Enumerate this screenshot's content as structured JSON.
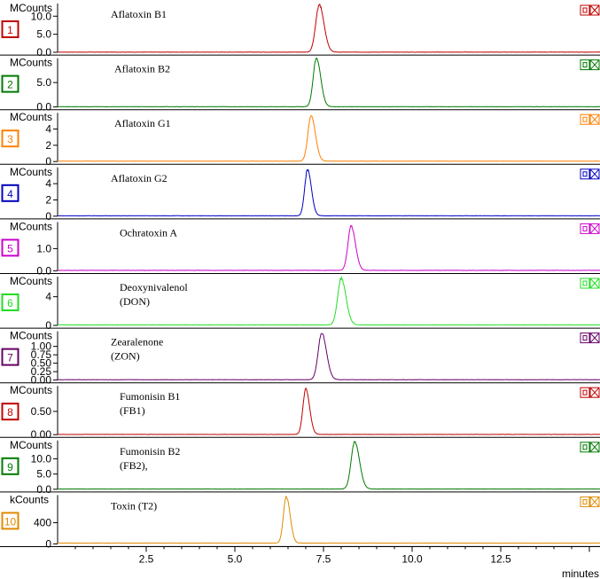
{
  "chart_data": {
    "type": "line",
    "x_axis": {
      "label": "minutes",
      "range": [
        0,
        15.3
      ],
      "ticks": [
        2.5,
        5.0,
        7.5,
        10.0,
        12.5
      ],
      "tick_labels": [
        "2.5",
        "5.0",
        "7.5",
        "10.0",
        "12.5"
      ]
    },
    "panels": [
      {
        "index": "1",
        "color": "#c00000",
        "unit": "MCounts",
        "compound": [
          "Aflatoxin B1"
        ],
        "y_ticks": [
          0.0,
          5.0,
          10.0
        ],
        "y_tick_labels": [
          "0.0",
          "5.0",
          "10.0"
        ],
        "y_range": [
          0,
          13.5
        ],
        "peak_time": 7.38,
        "peak_height": 13.0,
        "peak_width": 0.1,
        "baseline": 0.05
      },
      {
        "index": "2",
        "color": "#007a00",
        "unit": "MCounts",
        "compound": [
          "Aflatoxin B2"
        ],
        "y_ticks": [
          0.0,
          5.0
        ],
        "y_tick_labels": [
          "0.0",
          "5.0"
        ],
        "y_range": [
          0,
          10.0
        ],
        "peak_time": 7.3,
        "peak_height": 10.0,
        "peak_width": 0.09,
        "baseline": 0.05
      },
      {
        "index": "3",
        "color": "#ff8000",
        "unit": "MCounts",
        "compound": [
          "Aflatoxin G1"
        ],
        "y_ticks": [
          0,
          2,
          4
        ],
        "y_tick_labels": [
          "0",
          "2",
          "4"
        ],
        "y_range": [
          0,
          6.0
        ],
        "peak_time": 7.15,
        "peak_height": 5.6,
        "peak_width": 0.09,
        "baseline": 0.05
      },
      {
        "index": "4",
        "color": "#0000c0",
        "unit": "MCounts",
        "compound": [
          "Aflatoxin G2"
        ],
        "y_ticks": [
          0,
          2,
          4
        ],
        "y_tick_labels": [
          "0",
          "2",
          "4"
        ],
        "y_range": [
          0,
          6.0
        ],
        "peak_time": 7.05,
        "peak_height": 5.7,
        "peak_width": 0.08,
        "baseline": 0.05
      },
      {
        "index": "5",
        "color": "#cc00cc",
        "unit": "MCounts",
        "compound": [
          "Ochratoxin A"
        ],
        "y_ticks": [
          0.0,
          1.0
        ],
        "y_tick_labels": [
          "0.0",
          "1.0"
        ],
        "y_range": [
          0,
          2.2
        ],
        "peak_time": 8.28,
        "peak_height": 2.0,
        "peak_width": 0.09,
        "baseline": 0.02
      },
      {
        "index": "6",
        "color": "#22dd22",
        "unit": "MCounts",
        "compound": [
          "Deoxynivalenol",
          "(DON)"
        ],
        "y_ticks": [
          0,
          4
        ],
        "y_tick_labels": [
          "0",
          "4"
        ],
        "y_range": [
          0,
          6.8
        ],
        "peak_time": 8.0,
        "peak_height": 6.5,
        "peak_width": 0.1,
        "baseline": 0.08
      },
      {
        "index": "7",
        "color": "#660066",
        "unit": "MCounts",
        "compound": [
          "Zearalenone",
          "(ZON)"
        ],
        "y_ticks": [
          0.0,
          0.25,
          0.5,
          0.75,
          1.0
        ],
        "y_tick_labels": [
          "0.00",
          "0.25",
          "0.50",
          "0.75",
          "1.00"
        ],
        "y_range": [
          0,
          1.45
        ],
        "peak_time": 7.45,
        "peak_height": 1.38,
        "peak_width": 0.1,
        "baseline": 0.01
      },
      {
        "index": "8",
        "color": "#c00000",
        "unit": "MCounts",
        "compound": [
          "Fumonisin B1",
          "(FB1)"
        ],
        "y_ticks": [
          0.0,
          0.5
        ],
        "y_tick_labels": [
          "0.00",
          "0.50"
        ],
        "y_range": [
          0,
          1.05
        ],
        "peak_time": 7.0,
        "peak_height": 0.98,
        "peak_width": 0.08,
        "baseline": 0.005
      },
      {
        "index": "9",
        "color": "#007a00",
        "unit": "MCounts",
        "compound": [
          "Fumonisin B2",
          "(FB2),"
        ],
        "y_ticks": [
          0.0,
          5.0,
          10.0
        ],
        "y_tick_labels": [
          "0.0",
          "5.0",
          "10.0"
        ],
        "y_range": [
          0,
          16.0
        ],
        "peak_time": 8.38,
        "peak_height": 15.5,
        "peak_width": 0.1,
        "baseline": 0.1
      },
      {
        "index": "10",
        "color": "#e08a00",
        "unit": "kCounts",
        "compound": [
          "Toxin (T2)"
        ],
        "y_ticks": [
          0,
          400
        ],
        "y_tick_labels": [
          "0",
          "400"
        ],
        "y_range": [
          0,
          920
        ],
        "peak_time": 6.45,
        "peak_height": 880,
        "peak_width": 0.08,
        "baseline": 15
      }
    ]
  }
}
